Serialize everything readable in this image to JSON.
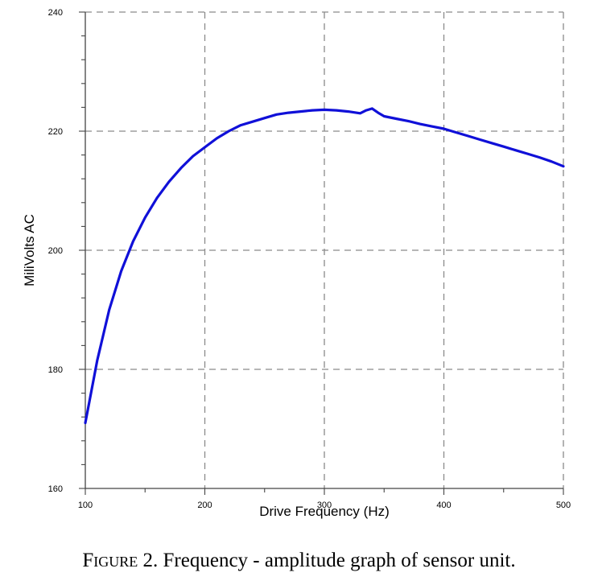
{
  "chart_data": {
    "type": "line",
    "xlabel": "Drive Frequency (Hz)",
    "ylabel": "MiliVolts AC",
    "xlim": [
      100,
      500
    ],
    "ylim": [
      160,
      240
    ],
    "x_ticks": [
      100,
      200,
      300,
      400,
      500
    ],
    "y_ticks": [
      160,
      180,
      200,
      220,
      240
    ],
    "grid": true,
    "line_color": "#1010d8",
    "series": [
      {
        "x": [
          100,
          110,
          120,
          130,
          140,
          150,
          160,
          170,
          180,
          190,
          200,
          210,
          220,
          230,
          240,
          250,
          260,
          270,
          280,
          290,
          300,
          310,
          320,
          330,
          335,
          340,
          345,
          350,
          360,
          370,
          380,
          390,
          400,
          410,
          420,
          430,
          440,
          450,
          460,
          470,
          480,
          490,
          500
        ],
        "y": [
          171,
          181.5,
          190,
          196.5,
          201.5,
          205.5,
          208.8,
          211.5,
          213.8,
          215.8,
          217.3,
          218.8,
          220,
          221,
          221.6,
          222.2,
          222.8,
          223.1,
          223.3,
          223.5,
          223.6,
          223.5,
          223.3,
          223.0,
          223.5,
          223.8,
          223.1,
          222.5,
          222.1,
          221.7,
          221.2,
          220.8,
          220.4,
          219.8,
          219.2,
          218.6,
          218.0,
          217.4,
          216.8,
          216.2,
          215.6,
          214.9,
          214.1
        ]
      }
    ]
  },
  "caption": {
    "label": "Figure",
    "text": " 2. Frequency - amplitude graph of sensor unit."
  }
}
